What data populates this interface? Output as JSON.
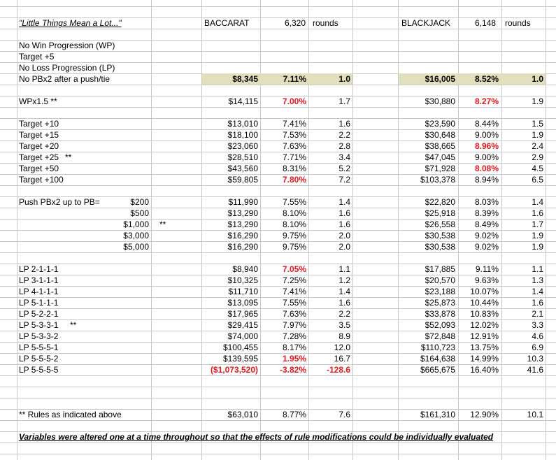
{
  "header": {
    "title": "\"Little Things Mean a Lot...\"",
    "baccarat": {
      "name": "BACCARAT",
      "rounds": "6,320",
      "unit": "rounds"
    },
    "blackjack": {
      "name": "BLACKJACK",
      "rounds": "6,148",
      "unit": "rounds"
    }
  },
  "settings": [
    "No Win Progression (WP)",
    "Target +5",
    "No Loss Progression (LP)"
  ],
  "base": {
    "label": "No PBx2 after a push/tie",
    "baccarat": {
      "amount": "$8,345",
      "pct": "7.11%",
      "ratio": "1.0"
    },
    "blackjack": {
      "amount": "$16,005",
      "pct": "8.52%",
      "ratio": "1.0"
    }
  },
  "wp": {
    "label": "WPx1.5 **",
    "baccarat": {
      "amount": "$14,115",
      "pct": "7.00%",
      "ratio": "1.7"
    },
    "blackjack": {
      "amount": "$30,880",
      "pct": "8.27%",
      "ratio": "1.9"
    },
    "red": [
      "baccarat.pct",
      "blackjack.pct"
    ]
  },
  "targets": [
    {
      "label": "Target +10",
      "baccarat": {
        "amount": "$13,010",
        "pct": "7.41%",
        "ratio": "1.6"
      },
      "blackjack": {
        "amount": "$23,590",
        "pct": "8.44%",
        "ratio": "1.5"
      }
    },
    {
      "label": "Target +15",
      "baccarat": {
        "amount": "$18,100",
        "pct": "7.53%",
        "ratio": "2.2"
      },
      "blackjack": {
        "amount": "$30,648",
        "pct": "9.00%",
        "ratio": "1.9"
      }
    },
    {
      "label": "Target +20",
      "baccarat": {
        "amount": "$23,060",
        "pct": "7.63%",
        "ratio": "2.8"
      },
      "blackjack": {
        "amount": "$38,665",
        "pct": "8.96%",
        "ratio": "2.4"
      },
      "red": [
        "blackjack.pct"
      ]
    },
    {
      "label": "Target +25",
      "note": "**",
      "baccarat": {
        "amount": "$28,510",
        "pct": "7.71%",
        "ratio": "3.4"
      },
      "blackjack": {
        "amount": "$47,045",
        "pct": "9.00%",
        "ratio": "2.9"
      }
    },
    {
      "label": "Target +50",
      "baccarat": {
        "amount": "$43,560",
        "pct": "8.31%",
        "ratio": "5.2"
      },
      "blackjack": {
        "amount": "$71,928",
        "pct": "8.08%",
        "ratio": "4.5"
      },
      "red": [
        "blackjack.pct"
      ]
    },
    {
      "label": "Target +100",
      "baccarat": {
        "amount": "$59,805",
        "pct": "7.80%",
        "ratio": "7.2"
      },
      "blackjack": {
        "amount": "$103,378",
        "pct": "8.94%",
        "ratio": "6.5"
      },
      "red": [
        "baccarat.pct"
      ]
    }
  ],
  "push": {
    "label": "Push PBx2 up to PB=",
    "rows": [
      {
        "sub": "$200",
        "baccarat": {
          "amount": "$11,990",
          "pct": "7.55%",
          "ratio": "1.4"
        },
        "blackjack": {
          "amount": "$22,820",
          "pct": "8.03%",
          "ratio": "1.4"
        }
      },
      {
        "sub": "$500",
        "baccarat": {
          "amount": "$13,290",
          "pct": "8.10%",
          "ratio": "1.6"
        },
        "blackjack": {
          "amount": "$25,918",
          "pct": "8.39%",
          "ratio": "1.6"
        }
      },
      {
        "sub": "$1,000",
        "note": "**",
        "baccarat": {
          "amount": "$13,290",
          "pct": "8.10%",
          "ratio": "1.6"
        },
        "blackjack": {
          "amount": "$26,558",
          "pct": "8.49%",
          "ratio": "1.7"
        }
      },
      {
        "sub": "$3,000",
        "baccarat": {
          "amount": "$16,290",
          "pct": "9.75%",
          "ratio": "2.0"
        },
        "blackjack": {
          "amount": "$30,538",
          "pct": "9.02%",
          "ratio": "1.9"
        }
      },
      {
        "sub": "$5,000",
        "baccarat": {
          "amount": "$16,290",
          "pct": "9.75%",
          "ratio": "2.0"
        },
        "blackjack": {
          "amount": "$30,538",
          "pct": "9.02%",
          "ratio": "1.9"
        }
      }
    ]
  },
  "lp": [
    {
      "label": "LP 2-1-1-1",
      "baccarat": {
        "amount": "$8,940",
        "pct": "7.05%",
        "ratio": "1.1"
      },
      "blackjack": {
        "amount": "$17,885",
        "pct": "9.11%",
        "ratio": "1.1"
      },
      "red": [
        "baccarat.pct"
      ]
    },
    {
      "label": "LP 3-1-1-1",
      "baccarat": {
        "amount": "$10,325",
        "pct": "7.25%",
        "ratio": "1.2"
      },
      "blackjack": {
        "amount": "$20,570",
        "pct": "9.63%",
        "ratio": "1.3"
      }
    },
    {
      "label": "LP 4-1-1-1",
      "baccarat": {
        "amount": "$11,710",
        "pct": "7.41%",
        "ratio": "1.4"
      },
      "blackjack": {
        "amount": "$23,188",
        "pct": "10.07%",
        "ratio": "1.4"
      }
    },
    {
      "label": "LP 5-1-1-1",
      "baccarat": {
        "amount": "$13,095",
        "pct": "7.55%",
        "ratio": "1.6"
      },
      "blackjack": {
        "amount": "$25,873",
        "pct": "10.44%",
        "ratio": "1.6"
      }
    },
    {
      "label": "LP 5-2-2-1",
      "baccarat": {
        "amount": "$17,965",
        "pct": "7.63%",
        "ratio": "2.2"
      },
      "blackjack": {
        "amount": "$33,878",
        "pct": "10.83%",
        "ratio": "2.1"
      }
    },
    {
      "label": "LP 5-3-3-1",
      "note": "**",
      "baccarat": {
        "amount": "$29,415",
        "pct": "7.97%",
        "ratio": "3.5"
      },
      "blackjack": {
        "amount": "$52,093",
        "pct": "12.02%",
        "ratio": "3.3"
      }
    },
    {
      "label": "LP 5-3-3-2",
      "baccarat": {
        "amount": "$74,000",
        "pct": "7.28%",
        "ratio": "8.9"
      },
      "blackjack": {
        "amount": "$72,848",
        "pct": "12.91%",
        "ratio": "4.6"
      }
    },
    {
      "label": "LP 5-5-5-1",
      "baccarat": {
        "amount": "$100,455",
        "pct": "8.17%",
        "ratio": "12.0"
      },
      "blackjack": {
        "amount": "$110,723",
        "pct": "13.75%",
        "ratio": "6.9"
      }
    },
    {
      "label": "LP 5-5-5-2",
      "baccarat": {
        "amount": "$139,595",
        "pct": "1.95%",
        "ratio": "16.7"
      },
      "blackjack": {
        "amount": "$164,638",
        "pct": "14.99%",
        "ratio": "10.3"
      },
      "red": [
        "baccarat.pct"
      ]
    },
    {
      "label": "LP 5-5-5-5",
      "baccarat": {
        "amount": "($1,073,520)",
        "pct": "-3.82%",
        "ratio": "-128.6"
      },
      "blackjack": {
        "amount": "$665,675",
        "pct": "16.40%",
        "ratio": "41.6"
      },
      "red": [
        "baccarat.amount",
        "baccarat.pct",
        "baccarat.ratio"
      ]
    }
  ],
  "rules": {
    "label": "** Rules as indicated above",
    "baccarat": {
      "amount": "$63,010",
      "pct": "8.77%",
      "ratio": "7.6"
    },
    "blackjack": {
      "amount": "$161,310",
      "pct": "12.90%",
      "ratio": "10.1"
    }
  },
  "footnote": "Variables were altered one at a time throughout so that the effects of rule modifications could be individually evaluated"
}
